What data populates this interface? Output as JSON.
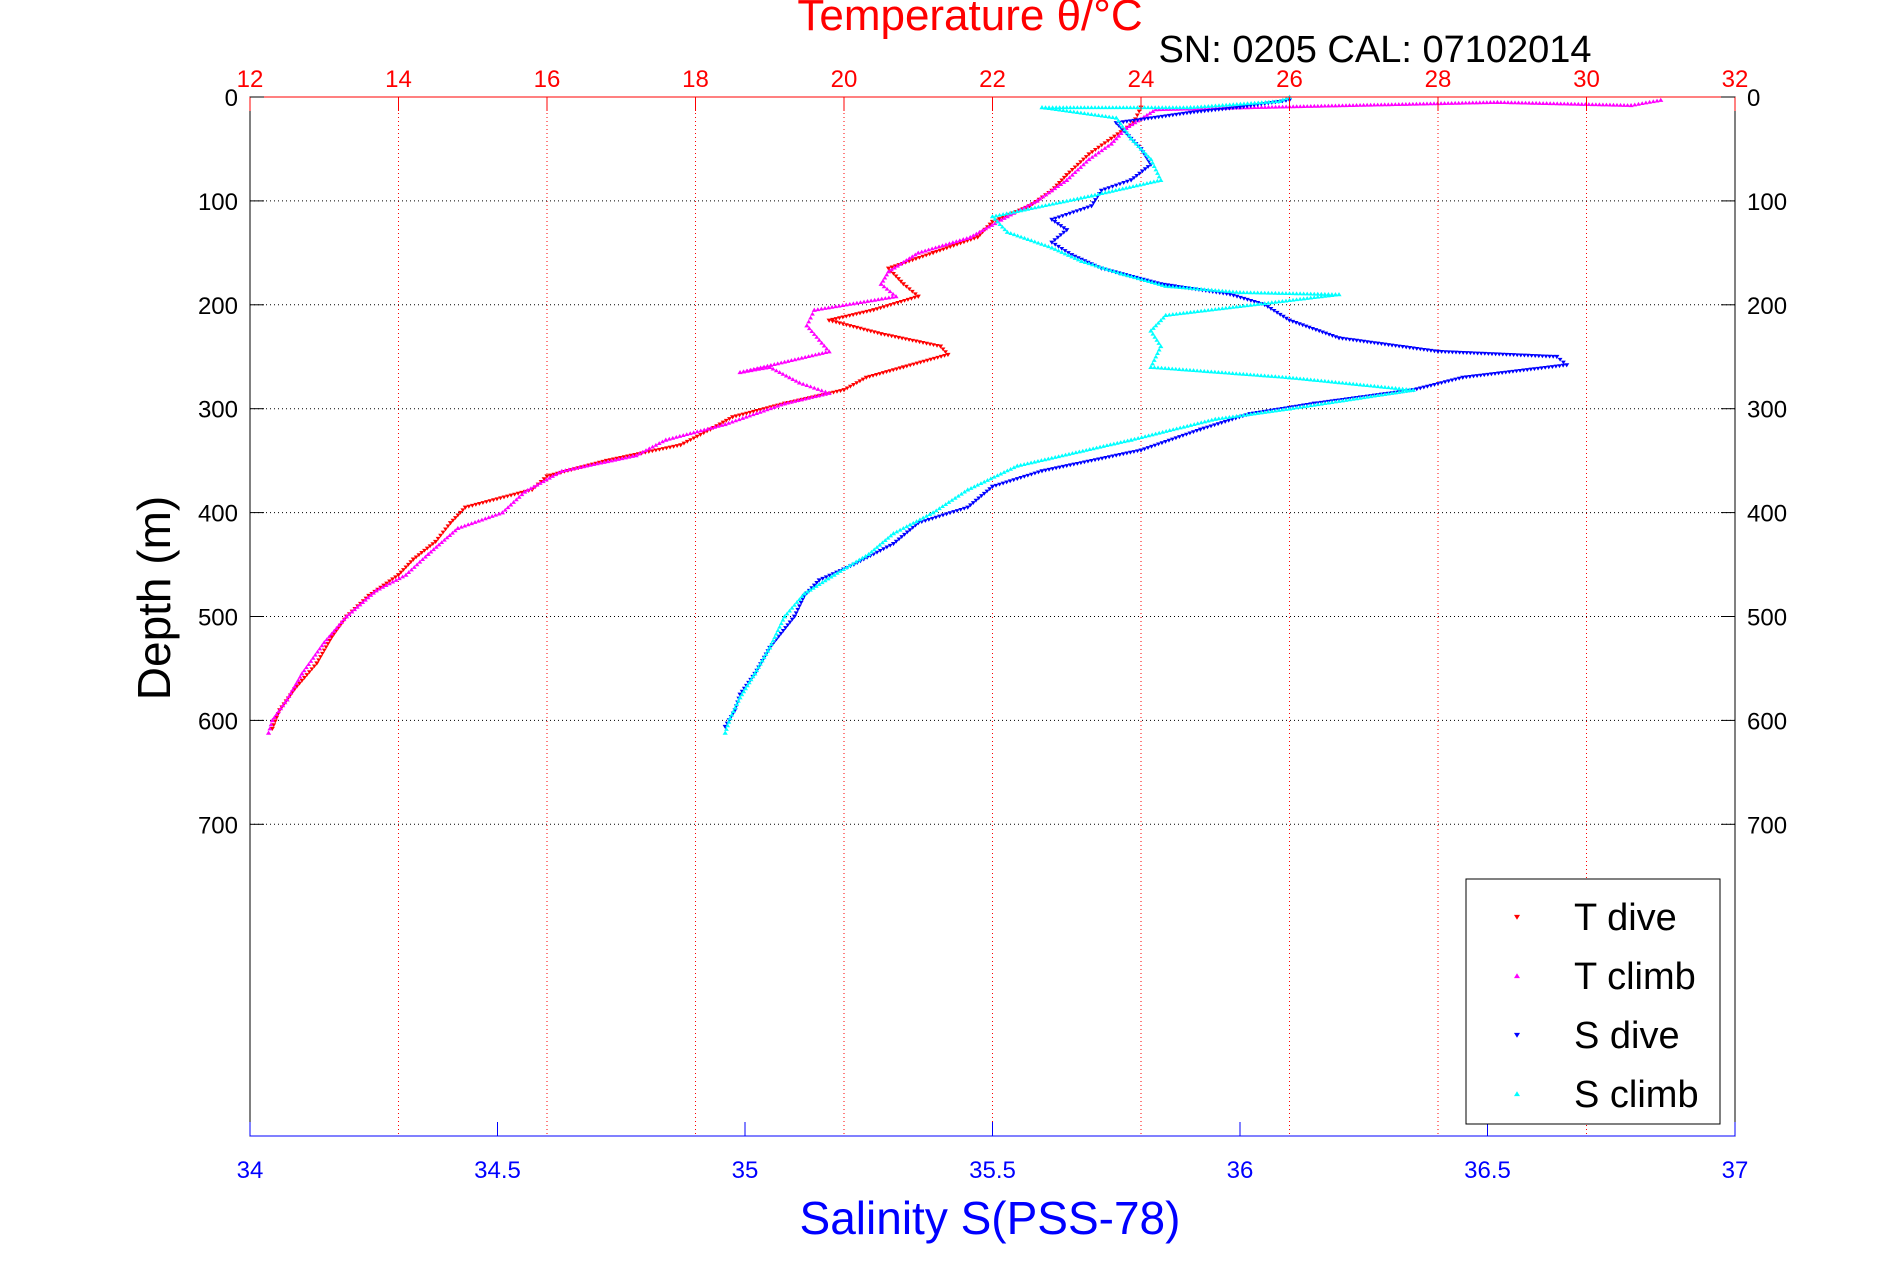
{
  "chart_data": {
    "type": "scatter",
    "title": "Temperature θ/°C",
    "subtitle": "SN: 0205  CAL: 07102014",
    "ylabel": "Depth (m)",
    "xlabel": "Salinity S(PSS-78)",
    "y_axis": {
      "range": [
        0,
        1000
      ],
      "reversed": true,
      "ticks": [
        0,
        100,
        200,
        300,
        400,
        500,
        600,
        700
      ]
    },
    "x_top_axis": {
      "quantity": "Temperature",
      "range": [
        12,
        32
      ],
      "ticks": [
        12,
        14,
        16,
        18,
        20,
        22,
        24,
        26,
        28,
        30,
        32
      ],
      "color": "#ff0000"
    },
    "x_bottom_axis": {
      "quantity": "Salinity",
      "range": [
        34,
        37
      ],
      "ticks": [
        34,
        34.5,
        35,
        35.5,
        36,
        36.5,
        37
      ],
      "color": "#0000ff"
    },
    "grid": true,
    "legend_position": "bottom-right",
    "series": [
      {
        "name": "T dive",
        "axis": "temperature",
        "color": "#ff0000",
        "marker": "triangle-down",
        "points": [
          [
            24.0,
            10
          ],
          [
            23.9,
            25
          ],
          [
            23.6,
            40
          ],
          [
            23.3,
            55
          ],
          [
            23.0,
            75
          ],
          [
            22.8,
            90
          ],
          [
            22.5,
            105
          ],
          [
            22.0,
            120
          ],
          [
            21.8,
            135
          ],
          [
            21.2,
            150
          ],
          [
            20.6,
            165
          ],
          [
            20.8,
            180
          ],
          [
            21.0,
            192
          ],
          [
            20.4,
            205
          ],
          [
            19.8,
            215
          ],
          [
            20.5,
            228
          ],
          [
            21.3,
            240
          ],
          [
            21.4,
            248
          ],
          [
            20.8,
            260
          ],
          [
            20.3,
            270
          ],
          [
            20.0,
            282
          ],
          [
            19.2,
            295
          ],
          [
            18.5,
            308
          ],
          [
            18.2,
            320
          ],
          [
            17.8,
            335
          ],
          [
            16.8,
            350
          ],
          [
            16.0,
            365
          ],
          [
            15.8,
            378
          ],
          [
            14.9,
            395
          ],
          [
            14.7,
            410
          ],
          [
            14.5,
            428
          ],
          [
            14.2,
            445
          ],
          [
            14.0,
            460
          ],
          [
            13.6,
            480
          ],
          [
            13.3,
            500
          ],
          [
            13.1,
            520
          ],
          [
            12.9,
            545
          ],
          [
            12.6,
            570
          ],
          [
            12.4,
            590
          ],
          [
            12.3,
            608
          ]
        ]
      },
      {
        "name": "T climb",
        "axis": "temperature",
        "color": "#ff00ff",
        "marker": "triangle-up",
        "points": [
          [
            31.0,
            3
          ],
          [
            30.6,
            8
          ],
          [
            28.8,
            5
          ],
          [
            24.2,
            12
          ],
          [
            23.8,
            30
          ],
          [
            23.6,
            45
          ],
          [
            23.3,
            60
          ],
          [
            23.0,
            80
          ],
          [
            22.6,
            100
          ],
          [
            22.2,
            115
          ],
          [
            21.7,
            135
          ],
          [
            21.0,
            150
          ],
          [
            20.6,
            168
          ],
          [
            20.5,
            180
          ],
          [
            20.7,
            192
          ],
          [
            19.6,
            205
          ],
          [
            19.5,
            220
          ],
          [
            19.8,
            245
          ],
          [
            18.6,
            265
          ],
          [
            19.0,
            260
          ],
          [
            19.4,
            275
          ],
          [
            19.8,
            285
          ],
          [
            19.2,
            295
          ],
          [
            18.4,
            315
          ],
          [
            17.6,
            330
          ],
          [
            17.2,
            345
          ],
          [
            16.2,
            360
          ],
          [
            15.7,
            380
          ],
          [
            15.4,
            400
          ],
          [
            14.8,
            415
          ],
          [
            14.4,
            440
          ],
          [
            14.1,
            460
          ],
          [
            13.7,
            475
          ],
          [
            13.3,
            500
          ],
          [
            13.0,
            525
          ],
          [
            12.7,
            555
          ],
          [
            12.5,
            580
          ],
          [
            12.3,
            600
          ],
          [
            12.25,
            612
          ]
        ]
      },
      {
        "name": "S dive",
        "axis": "salinity",
        "color": "#0000ff",
        "marker": "triangle-down",
        "points": [
          [
            36.1,
            3
          ],
          [
            36.0,
            10
          ],
          [
            35.9,
            15
          ],
          [
            35.75,
            25
          ],
          [
            35.8,
            50
          ],
          [
            35.82,
            65
          ],
          [
            35.78,
            80
          ],
          [
            35.72,
            90
          ],
          [
            35.7,
            105
          ],
          [
            35.62,
            118
          ],
          [
            35.65,
            128
          ],
          [
            35.62,
            140
          ],
          [
            35.66,
            152
          ],
          [
            35.72,
            165
          ],
          [
            35.84,
            180
          ],
          [
            35.98,
            190
          ],
          [
            36.05,
            200
          ],
          [
            36.1,
            215
          ],
          [
            36.2,
            232
          ],
          [
            36.4,
            245
          ],
          [
            36.64,
            250
          ],
          [
            36.66,
            258
          ],
          [
            36.45,
            270
          ],
          [
            36.35,
            282
          ],
          [
            36.15,
            295
          ],
          [
            36.02,
            305
          ],
          [
            35.92,
            320
          ],
          [
            35.8,
            340
          ],
          [
            35.6,
            360
          ],
          [
            35.5,
            375
          ],
          [
            35.45,
            395
          ],
          [
            35.35,
            410
          ],
          [
            35.3,
            430
          ],
          [
            35.22,
            450
          ],
          [
            35.15,
            465
          ],
          [
            35.12,
            480
          ],
          [
            35.1,
            500
          ],
          [
            35.05,
            530
          ],
          [
            35.02,
            555
          ],
          [
            34.99,
            575
          ],
          [
            34.98,
            590
          ],
          [
            34.96,
            606
          ]
        ]
      },
      {
        "name": "S climb",
        "axis": "salinity",
        "color": "#00ffff",
        "marker": "triangle-up",
        "points": [
          [
            36.1,
            0
          ],
          [
            36.08,
            4
          ],
          [
            35.9,
            10
          ],
          [
            35.6,
            10
          ],
          [
            35.75,
            20
          ],
          [
            35.78,
            40
          ],
          [
            35.82,
            60
          ],
          [
            35.84,
            80
          ],
          [
            35.7,
            95
          ],
          [
            35.5,
            115
          ],
          [
            35.53,
            130
          ],
          [
            35.62,
            145
          ],
          [
            35.68,
            158
          ],
          [
            35.76,
            170
          ],
          [
            35.85,
            182
          ],
          [
            36.0,
            188
          ],
          [
            36.2,
            190
          ],
          [
            35.85,
            210
          ],
          [
            35.82,
            225
          ],
          [
            35.84,
            240
          ],
          [
            35.82,
            260
          ],
          [
            36.1,
            270
          ],
          [
            36.35,
            282
          ],
          [
            36.1,
            300
          ],
          [
            35.95,
            310
          ],
          [
            35.78,
            330
          ],
          [
            35.55,
            355
          ],
          [
            35.45,
            378
          ],
          [
            35.38,
            400
          ],
          [
            35.3,
            420
          ],
          [
            35.25,
            440
          ],
          [
            35.18,
            460
          ],
          [
            35.12,
            478
          ],
          [
            35.08,
            500
          ],
          [
            35.05,
            530
          ],
          [
            35.02,
            555
          ],
          [
            34.99,
            578
          ],
          [
            34.97,
            598
          ],
          [
            34.96,
            612
          ]
        ]
      }
    ]
  }
}
